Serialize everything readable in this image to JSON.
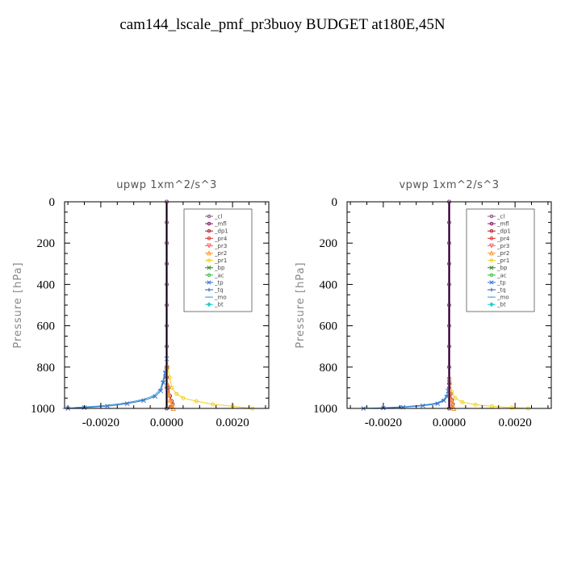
{
  "title": "cam144_lscale_pmf_pr3buoy  BUDGET at180E,45N",
  "legend_items": [
    {
      "label": "_cl",
      "color": "#8c5a8c",
      "marker": "o"
    },
    {
      "label": "_mfl",
      "color": "#8b1a6b",
      "marker": "o"
    },
    {
      "label": "_dp1",
      "color": "#b22222",
      "marker": "o"
    },
    {
      "label": "_pr4",
      "color": "#e03030",
      "marker": "o"
    },
    {
      "label": "_pr3",
      "color": "#ff6060",
      "marker": "v"
    },
    {
      "label": "_pr2",
      "color": "#ff9a2e",
      "marker": "^"
    },
    {
      "label": "_pr1",
      "color": "#f0d020",
      "marker": "o"
    },
    {
      "label": "_bp",
      "color": "#2e8b2e",
      "marker": "x"
    },
    {
      "label": "_ac",
      "color": "#40c040",
      "marker": "o"
    },
    {
      "label": "_tp",
      "color": "#3a70d0",
      "marker": "x"
    },
    {
      "label": "_tq",
      "color": "#3050b0",
      "marker": "+"
    },
    {
      "label": "_mo",
      "color": "#30a0d0",
      "marker": "-"
    },
    {
      "label": "_bt",
      "color": "#20d0d0",
      "marker": "d"
    }
  ],
  "chart_data": [
    {
      "type": "line",
      "title": "upwp   1xm^2/s^3",
      "xlabel": "",
      "ylabel": "Pressure [hPa]",
      "xlim": [
        -0.0031,
        0.0031
      ],
      "ylim": [
        1000,
        0
      ],
      "xticks": [
        -0.002,
        0.0,
        0.002
      ],
      "xtick_labels": [
        "-0.0020",
        "0.0000",
        "0.0020"
      ],
      "yticks": [
        0,
        200,
        400,
        600,
        800,
        1000
      ],
      "ytick_labels": [
        "0",
        "200",
        "400",
        "600",
        "800",
        "1000"
      ],
      "legend": "top-right",
      "series": [
        {
          "name": "_pr1",
          "color": "#f0d020",
          "x": [
            0.0,
            4e-05,
            9e-05,
            0.00016,
            0.0003,
            0.0005,
            0.0009,
            0.0014,
            0.002,
            0.0026
          ],
          "y": [
            700,
            800,
            850,
            900,
            930,
            950,
            965,
            980,
            990,
            1000
          ]
        },
        {
          "name": "_mo",
          "color": "#30a0d0",
          "x": [
            0.0,
            -5e-05,
            -0.00012,
            -0.0002,
            -0.0004,
            -0.0008,
            -0.0013,
            -0.002,
            -0.0027,
            -0.0031
          ],
          "y": [
            750,
            820,
            870,
            910,
            940,
            960,
            975,
            988,
            995,
            1000
          ]
        },
        {
          "name": "_tp",
          "color": "#3a70d0",
          "x": [
            0.0,
            -4e-05,
            -0.0001,
            -0.00018,
            -0.00035,
            -0.0007,
            -0.0012,
            -0.0018,
            -0.0025,
            -0.003
          ],
          "y": [
            760,
            830,
            875,
            915,
            942,
            962,
            977,
            989,
            996,
            1000
          ]
        },
        {
          "name": "_dp1",
          "color": "#b22222",
          "x": [
            0.0,
            5e-05,
            0.0001,
            0.00015,
            0.00018,
            0.00012,
            0.0
          ],
          "y": [
            850,
            900,
            940,
            965,
            980,
            992,
            1000
          ]
        },
        {
          "name": "_pr2",
          "color": "#ff9a2e",
          "x": [
            0.0,
            2e-05,
            5e-05,
            0.0001,
            0.00015,
            0.0002
          ],
          "y": [
            800,
            880,
            930,
            960,
            985,
            1000
          ]
        },
        {
          "name": "_mfl",
          "color": "#8b1a6b",
          "x": [
            0.0,
            0.0,
            0.0,
            0.0,
            0.0,
            0.0,
            0.0,
            0.0,
            0.0,
            0.0,
            0.0
          ],
          "y": [
            0,
            100,
            200,
            300,
            400,
            500,
            600,
            700,
            800,
            900,
            1000
          ]
        },
        {
          "name": "_cl",
          "color": "#8c5a8c",
          "x": [
            0.0,
            0.0,
            0.0,
            0.0,
            0.0,
            0.0,
            0.0,
            0.0,
            0.0,
            0.0,
            0.0
          ],
          "y": [
            0,
            100,
            200,
            300,
            400,
            500,
            600,
            700,
            800,
            900,
            1000
          ]
        }
      ]
    },
    {
      "type": "line",
      "title": "vpwp   1xm^2/s^3",
      "xlabel": "",
      "ylabel": "Pressure [hPa]",
      "xlim": [
        -0.0031,
        0.0031
      ],
      "ylim": [
        1000,
        0
      ],
      "xticks": [
        -0.002,
        0.0,
        0.002
      ],
      "xtick_labels": [
        "-0.0020",
        "0.0000",
        "0.0020"
      ],
      "yticks": [
        0,
        200,
        400,
        600,
        800,
        1000
      ],
      "ytick_labels": [
        "0",
        "200",
        "400",
        "600",
        "800",
        "1000"
      ],
      "legend": "top-right",
      "series": [
        {
          "name": "_pr1",
          "color": "#f0d020",
          "x": [
            0.0,
            3e-05,
            8e-05,
            0.00018,
            0.0004,
            0.0008,
            0.0013,
            0.0019,
            0.0024
          ],
          "y": [
            800,
            880,
            920,
            950,
            970,
            982,
            990,
            996,
            1000
          ]
        },
        {
          "name": "_mo",
          "color": "#30a0d0",
          "x": [
            0.0,
            -3e-05,
            -8e-05,
            -0.00018,
            -0.0004,
            -0.0009,
            -0.0015,
            -0.0022,
            -0.0028
          ],
          "y": [
            850,
            910,
            940,
            960,
            975,
            986,
            993,
            998,
            1000
          ]
        },
        {
          "name": "_tp",
          "color": "#3a70d0",
          "x": [
            0.0,
            -3e-05,
            -7e-05,
            -0.00016,
            -0.00035,
            -0.0008,
            -0.0014,
            -0.002,
            -0.0026
          ],
          "y": [
            860,
            915,
            943,
            962,
            977,
            987,
            994,
            998,
            1000
          ]
        },
        {
          "name": "_dp1",
          "color": "#b22222",
          "x": [
            0.0,
            4e-05,
            8e-05,
            0.00011,
            8e-05,
            0.0
          ],
          "y": [
            880,
            930,
            960,
            980,
            993,
            1000
          ]
        },
        {
          "name": "_pr2",
          "color": "#ff9a2e",
          "x": [
            0.0,
            2e-05,
            5e-05,
            9e-05,
            0.00014
          ],
          "y": [
            850,
            920,
            960,
            985,
            1000
          ]
        },
        {
          "name": "_mfl",
          "color": "#8b1a6b",
          "x": [
            0.0,
            0.0,
            0.0,
            0.0,
            0.0,
            0.0,
            0.0,
            0.0,
            0.0,
            0.0,
            0.0
          ],
          "y": [
            0,
            100,
            200,
            300,
            400,
            500,
            600,
            700,
            800,
            900,
            1000
          ]
        },
        {
          "name": "_cl",
          "color": "#8c5a8c",
          "x": [
            0.0,
            0.0,
            0.0,
            0.0,
            0.0,
            0.0,
            0.0,
            0.0,
            0.0,
            0.0,
            0.0
          ],
          "y": [
            0,
            100,
            200,
            300,
            400,
            500,
            600,
            700,
            800,
            900,
            1000
          ]
        }
      ]
    }
  ]
}
